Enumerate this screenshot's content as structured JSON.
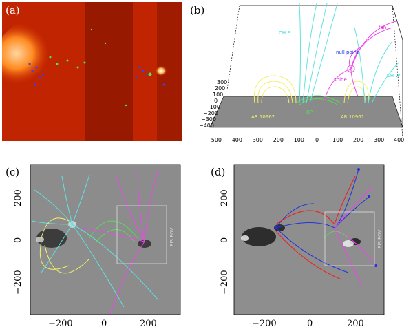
{
  "panels": {
    "a": {
      "label": "(a)"
    },
    "b": {
      "label": "(b)",
      "annotations": {
        "ch_e": "CH E",
        "ch_w": "CH W",
        "fan": "fan",
        "null_point": "null\npoint",
        "spine": "spine",
        "ar_left": "AR 10962",
        "ar_right": "AR 10961",
        "mid": "BP"
      },
      "x_ticks": [
        "−500",
        "−400",
        "−300",
        "−200",
        "−100",
        "0",
        "100",
        "200",
        "300",
        "400"
      ],
      "y_ticks": [
        "300",
        "200",
        "100",
        "0",
        "−100",
        "−200",
        "−300",
        "−400"
      ]
    },
    "c": {
      "label": "(c)",
      "fov_label": "EIS FOV",
      "x_ticks": [
        "−200",
        "0",
        "200"
      ],
      "y_ticks": [
        "200",
        "0",
        "−200"
      ]
    },
    "d": {
      "label": "(d)",
      "fov_label": "EIS FOV",
      "x_ticks": [
        "−200",
        "0",
        "200"
      ],
      "y_ticks": [
        "200",
        "0",
        "−200"
      ]
    }
  },
  "colors": {
    "cyan": "#5fe3e3",
    "magenta": "#ee44ee",
    "yellow": "#f4f06a",
    "green": "#55dd55",
    "blue": "#2233dd",
    "red": "#ee2222",
    "fov": "#dddddd"
  }
}
